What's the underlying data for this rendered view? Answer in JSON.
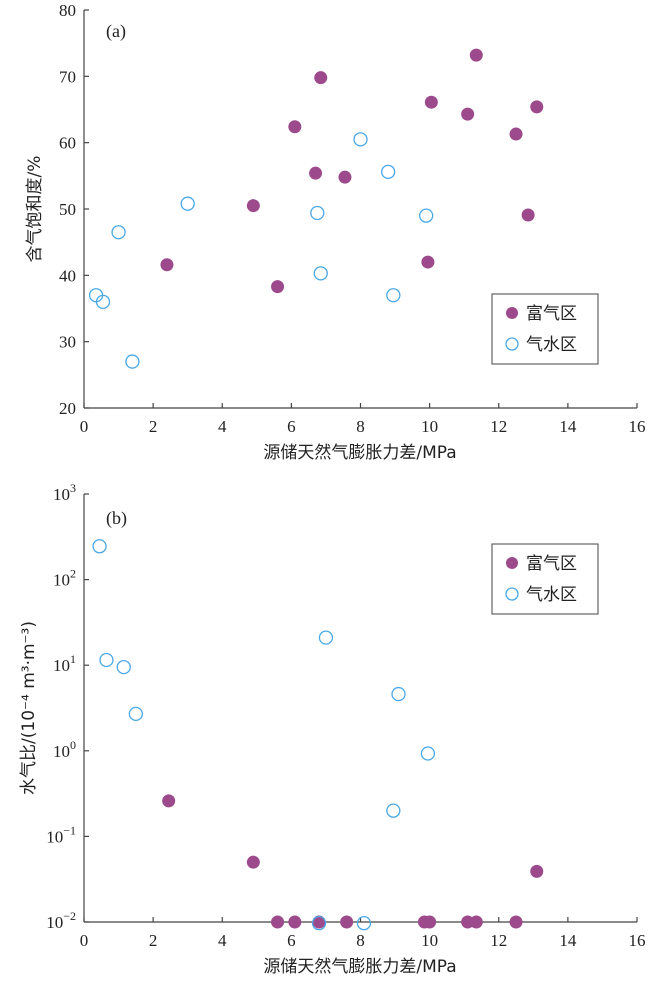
{
  "colors": {
    "rich_gas": "#9c4a8c",
    "gas_water": "#4aa8e6",
    "axis": "#444444"
  },
  "chart_data": [
    {
      "type": "scatter",
      "panel_label": "(a)",
      "xlabel": "源储天然气膨胀力差/MPa",
      "ylabel": "含气饱和度/%",
      "xlim": [
        0,
        16
      ],
      "ylim": [
        20,
        80
      ],
      "xticks": [
        "0",
        "2",
        "4",
        "6",
        "8",
        "10",
        "12",
        "14",
        "16"
      ],
      "yticks": [
        "20",
        "30",
        "40",
        "50",
        "60",
        "70",
        "80"
      ],
      "legend_position": "lower-right",
      "series": [
        {
          "name": "富气区",
          "marker": "filled-circle",
          "points": [
            [
              2.4,
              41.6
            ],
            [
              4.9,
              50.5
            ],
            [
              5.6,
              38.3
            ],
            [
              6.1,
              62.4
            ],
            [
              6.7,
              55.4
            ],
            [
              6.85,
              69.8
            ],
            [
              7.55,
              54.8
            ],
            [
              9.95,
              42.0
            ],
            [
              10.05,
              66.1
            ],
            [
              11.1,
              64.3
            ],
            [
              11.35,
              73.2
            ],
            [
              12.5,
              61.3
            ],
            [
              12.85,
              49.1
            ],
            [
              13.1,
              65.4
            ]
          ]
        },
        {
          "name": "气水区",
          "marker": "open-circle",
          "points": [
            [
              0.35,
              37.0
            ],
            [
              0.55,
              36.0
            ],
            [
              1.0,
              46.5
            ],
            [
              1.4,
              27.0
            ],
            [
              3.0,
              50.8
            ],
            [
              6.75,
              49.4
            ],
            [
              6.85,
              40.3
            ],
            [
              8.0,
              60.5
            ],
            [
              8.8,
              55.6
            ],
            [
              8.95,
              37.0
            ],
            [
              9.9,
              49.0
            ]
          ]
        }
      ]
    },
    {
      "type": "scatter",
      "panel_label": "(b)",
      "xlabel": "源储天然气膨胀力差/MPa",
      "ylabel": "水气比/(10⁻⁴ m³·m⁻³)",
      "xlim": [
        0,
        16
      ],
      "ylim": [
        0.01,
        1000
      ],
      "yscale": "log",
      "xticks": [
        "0",
        "2",
        "4",
        "6",
        "8",
        "10",
        "12",
        "14",
        "16"
      ],
      "yticks": [
        {
          "base": "10",
          "exp": "3"
        },
        {
          "base": "10",
          "exp": "2"
        },
        {
          "base": "10",
          "exp": "1"
        },
        {
          "base": "10",
          "exp": "0"
        },
        {
          "base": "10",
          "exp": "−1"
        },
        {
          "base": "10",
          "exp": "−2"
        }
      ],
      "legend_position": "upper-right",
      "series": [
        {
          "name": "富气区",
          "marker": "filled-circle",
          "points": [
            [
              2.45,
              0.26
            ],
            [
              4.9,
              0.05
            ],
            [
              5.6,
              0.01
            ],
            [
              6.1,
              0.01
            ],
            [
              6.8,
              0.01
            ],
            [
              7.6,
              0.01
            ],
            [
              9.85,
              0.01
            ],
            [
              10.0,
              0.01
            ],
            [
              11.1,
              0.01
            ],
            [
              11.35,
              0.01
            ],
            [
              12.5,
              0.01
            ],
            [
              13.1,
              0.039
            ]
          ]
        },
        {
          "name": "气水区",
          "marker": "open-circle",
          "points": [
            [
              0.45,
              245
            ],
            [
              0.65,
              11.5
            ],
            [
              1.15,
              9.5
            ],
            [
              1.5,
              2.7
            ],
            [
              6.8,
              0.0097
            ],
            [
              7.0,
              21
            ],
            [
              8.1,
              0.0097
            ],
            [
              8.95,
              0.2
            ],
            [
              9.1,
              4.6
            ],
            [
              9.95,
              0.93
            ]
          ]
        }
      ]
    }
  ]
}
